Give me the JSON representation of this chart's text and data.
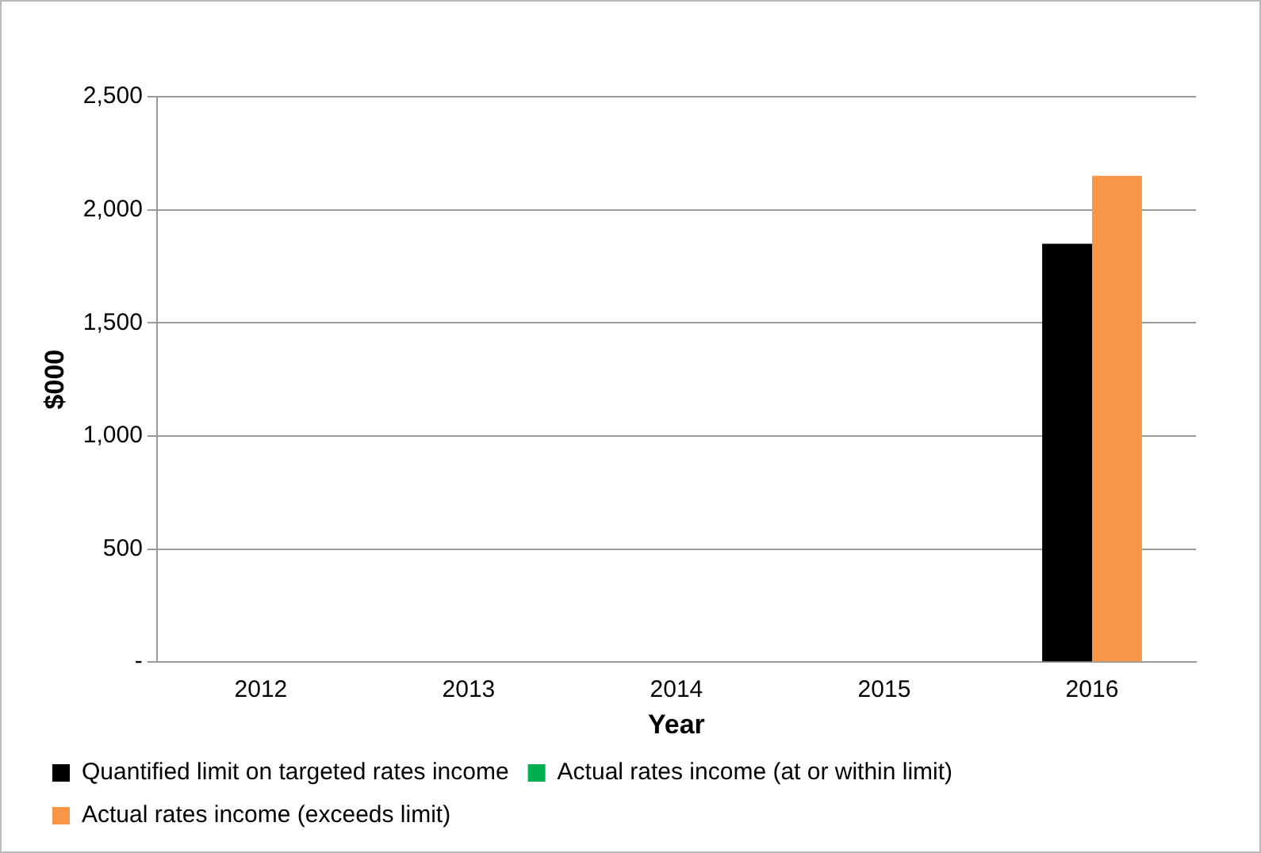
{
  "chart_data": {
    "type": "bar",
    "xlabel": "Year",
    "ylabel": "$000",
    "categories": [
      "2012",
      "2013",
      "2014",
      "2015",
      "2016"
    ],
    "series": [
      {
        "name": "Quantified limit on targeted rates income",
        "color": "#000000",
        "values": [
          null,
          null,
          null,
          null,
          1850
        ]
      },
      {
        "name": "Actual rates income (at or within limit)",
        "color": "#00b050",
        "values": [
          null,
          null,
          null,
          null,
          null
        ]
      },
      {
        "name": "Actual rates income (exceeds limit)",
        "color": "#f79646",
        "values": [
          null,
          null,
          null,
          null,
          2150
        ]
      }
    ],
    "ylim": [
      0,
      2500
    ],
    "yticks": [
      {
        "value": 0,
        "label": "-"
      },
      {
        "value": 500,
        "label": "500"
      },
      {
        "value": 1000,
        "label": "1,000"
      },
      {
        "value": 1500,
        "label": "1,500"
      },
      {
        "value": 2000,
        "label": "2,000"
      },
      {
        "value": 2500,
        "label": "2,500"
      }
    ],
    "grid": "y",
    "legend": "bottom"
  }
}
